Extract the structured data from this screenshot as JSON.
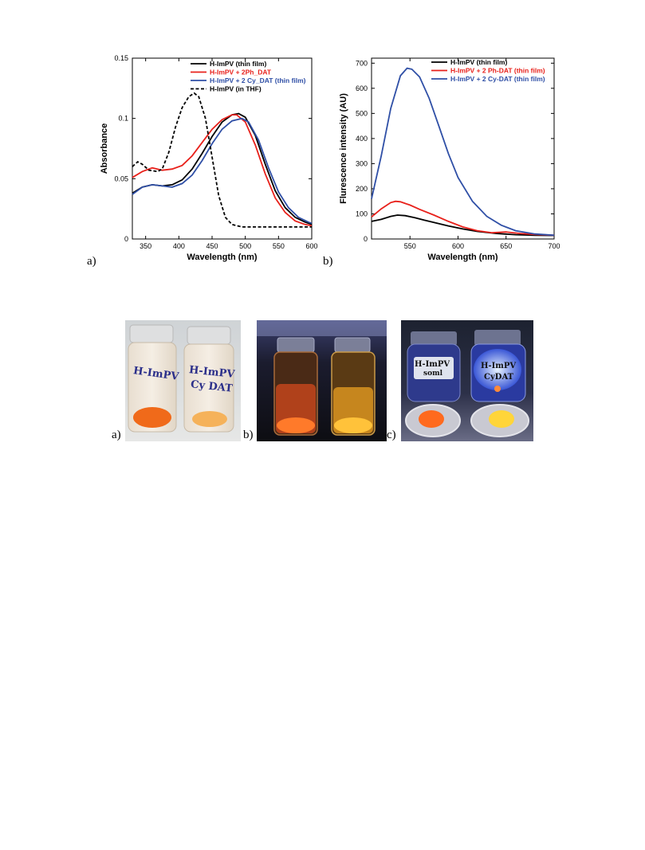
{
  "chart_data": [
    {
      "type": "line",
      "xlabel": "Wavelength (nm)",
      "ylabel": "Absorbance",
      "xlim": [
        330,
        600
      ],
      "ylim": [
        0,
        0.15
      ],
      "xticks": [
        350,
        400,
        450,
        500,
        550,
        600
      ],
      "yticks": [
        0,
        0.05,
        0.1,
        0.15
      ],
      "yticklabels": [
        "0",
        "0.05",
        "0.1",
        "0.15"
      ],
      "grid": false,
      "legend_placement": "top-right",
      "series": [
        {
          "name": "H-ImPV (thin film)",
          "color": "#000000",
          "dash": "solid",
          "x": [
            330,
            345,
            360,
            375,
            390,
            405,
            420,
            435,
            450,
            465,
            480,
            490,
            500,
            515,
            530,
            545,
            560,
            575,
            590,
            600
          ],
          "y": [
            0.038,
            0.043,
            0.045,
            0.044,
            0.045,
            0.049,
            0.058,
            0.071,
            0.085,
            0.097,
            0.103,
            0.104,
            0.101,
            0.086,
            0.062,
            0.04,
            0.026,
            0.018,
            0.014,
            0.012
          ]
        },
        {
          "name": "H-ImPV + 2Ph_DAT",
          "color": "#e8211b",
          "dash": "solid",
          "x": [
            330,
            345,
            360,
            375,
            390,
            405,
            420,
            435,
            450,
            465,
            480,
            487,
            500,
            515,
            530,
            545,
            560,
            575,
            590,
            600
          ],
          "y": [
            0.051,
            0.056,
            0.059,
            0.057,
            0.058,
            0.061,
            0.069,
            0.08,
            0.091,
            0.099,
            0.103,
            0.103,
            0.097,
            0.078,
            0.054,
            0.034,
            0.022,
            0.015,
            0.012,
            0.011
          ]
        },
        {
          "name": "H-ImPV + 2 Cy_DAT (thin film)",
          "color": "#2f4fa6",
          "dash": "solid",
          "x": [
            330,
            345,
            360,
            375,
            390,
            405,
            420,
            435,
            450,
            465,
            480,
            495,
            505,
            520,
            535,
            550,
            565,
            580,
            595,
            600
          ],
          "y": [
            0.037,
            0.043,
            0.045,
            0.044,
            0.043,
            0.046,
            0.053,
            0.065,
            0.079,
            0.091,
            0.098,
            0.1,
            0.097,
            0.082,
            0.059,
            0.039,
            0.026,
            0.018,
            0.014,
            0.013
          ]
        },
        {
          "name": "H-ImPV (in THF)",
          "color": "#000000",
          "dash": "dashed",
          "x": [
            330,
            338,
            345,
            355,
            368,
            375,
            385,
            395,
            405,
            415,
            423,
            430,
            440,
            450,
            460,
            470,
            480,
            495,
            520,
            560,
            600
          ],
          "y": [
            0.06,
            0.064,
            0.062,
            0.057,
            0.056,
            0.058,
            0.072,
            0.093,
            0.109,
            0.118,
            0.121,
            0.118,
            0.1,
            0.068,
            0.036,
            0.018,
            0.012,
            0.01,
            0.01,
            0.01,
            0.01
          ]
        }
      ]
    },
    {
      "type": "line",
      "xlabel": "Wavelength (nm)",
      "ylabel": "Flurescence intensity (AU)",
      "xlim": [
        510,
        700
      ],
      "ylim": [
        0,
        720
      ],
      "xticks": [
        550,
        600,
        650,
        700
      ],
      "yticks": [
        0,
        100,
        200,
        300,
        400,
        500,
        600,
        700
      ],
      "grid": false,
      "legend_placement": "top-center",
      "series": [
        {
          "name": "H-ImPV (thin film)",
          "color": "#000000",
          "x": [
            510,
            520,
            530,
            537,
            545,
            555,
            565,
            575,
            590,
            605,
            620,
            640,
            660,
            680,
            700
          ],
          "y": [
            70,
            78,
            90,
            95,
            93,
            85,
            75,
            66,
            52,
            40,
            30,
            22,
            17,
            15,
            14
          ]
        },
        {
          "name": "H-ImPV + 2 Ph-DAT (thin film)",
          "color": "#e8211b",
          "x": [
            510,
            520,
            530,
            535,
            540,
            550,
            560,
            575,
            590,
            605,
            620,
            635,
            650,
            665,
            680,
            700
          ],
          "y": [
            88,
            120,
            145,
            150,
            148,
            135,
            118,
            95,
            70,
            48,
            33,
            25,
            28,
            22,
            18,
            15
          ]
        },
        {
          "name": "H-ImPV + 2 Cy-DAT (thin film)",
          "color": "#2f4fa6",
          "x": [
            510,
            520,
            530,
            540,
            547,
            552,
            560,
            570,
            580,
            590,
            600,
            615,
            630,
            645,
            660,
            680,
            700
          ],
          "y": [
            160,
            330,
            520,
            650,
            680,
            676,
            645,
            560,
            450,
            340,
            245,
            150,
            90,
            55,
            33,
            20,
            15
          ]
        }
      ]
    }
  ],
  "figure1_labels": {
    "a": "a)",
    "b": "b)"
  },
  "photos": {
    "labels": {
      "a": "a)",
      "b": "b)",
      "c": "c)"
    },
    "vial_texts": {
      "left_vial": "H-ImPV",
      "right_vial_line1": "H-ImPV",
      "right_vial_line2": "Cy DAT",
      "c_left_line1": "H-ImPV",
      "c_left_line2": "soml",
      "c_right_line1": "H-ImPV",
      "c_right_line2": "CyDAT"
    }
  }
}
